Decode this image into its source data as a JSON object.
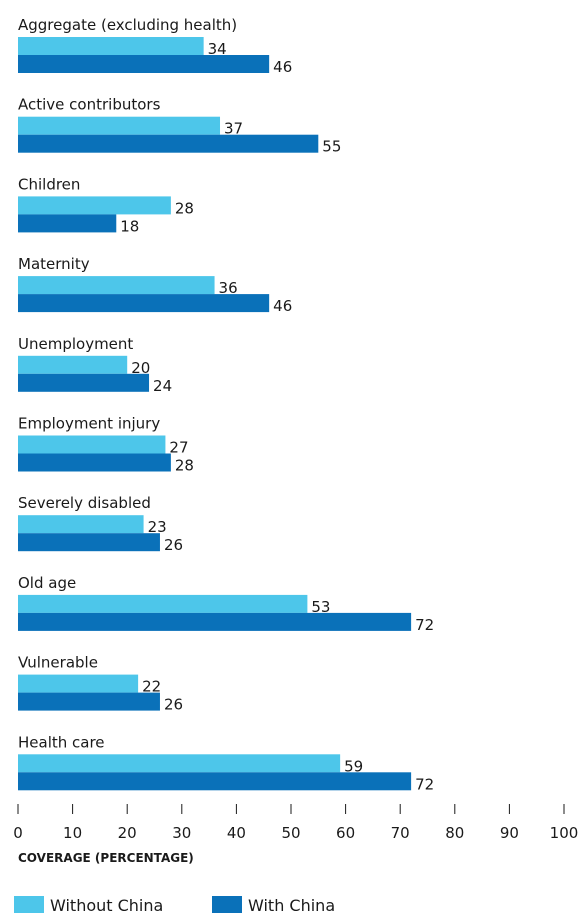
{
  "chart_data": {
    "type": "bar",
    "orientation": "horizontal",
    "categories": [
      "Aggregate (excluding health)",
      "Active contributors",
      "Children",
      "Maternity",
      "Unemployment",
      "Employment injury",
      "Severely disabled",
      "Old age",
      "Vulnerable",
      "Health care"
    ],
    "series": [
      {
        "name": "Without China",
        "color": "#4dc6ea",
        "values": [
          34,
          37,
          28,
          36,
          20,
          27,
          23,
          53,
          22,
          59
        ]
      },
      {
        "name": "With China",
        "color": "#0a71b9",
        "values": [
          46,
          55,
          18,
          46,
          24,
          28,
          26,
          72,
          26,
          72
        ]
      }
    ],
    "xlabel": "COVERAGE (PERCENTAGE)",
    "xlim": [
      0,
      100
    ],
    "xticks": [
      0,
      10,
      20,
      30,
      40,
      50,
      60,
      70,
      80,
      90,
      100
    ],
    "grid": false,
    "legend_position": "bottom-left"
  }
}
